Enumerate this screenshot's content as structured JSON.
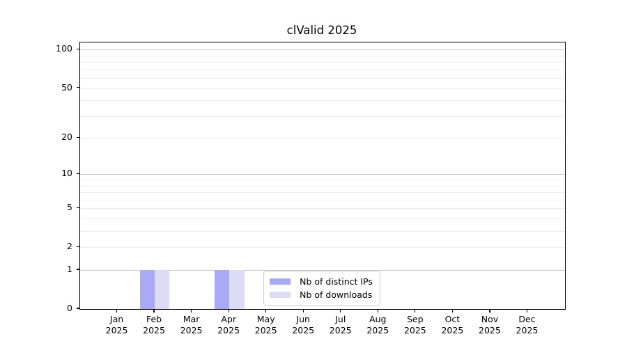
{
  "chart_data": {
    "type": "bar",
    "title": "clValid 2025",
    "xlabel": "",
    "ylabel": "",
    "yscale": "log1p",
    "ylim": [
      0,
      114
    ],
    "grid": "on",
    "legend_position": "lower center",
    "categories": [
      {
        "month": "Jan",
        "year": "2025"
      },
      {
        "month": "Feb",
        "year": "2025"
      },
      {
        "month": "Mar",
        "year": "2025"
      },
      {
        "month": "Apr",
        "year": "2025"
      },
      {
        "month": "May",
        "year": "2025"
      },
      {
        "month": "Jun",
        "year": "2025"
      },
      {
        "month": "Jul",
        "year": "2025"
      },
      {
        "month": "Aug",
        "year": "2025"
      },
      {
        "month": "Sep",
        "year": "2025"
      },
      {
        "month": "Oct",
        "year": "2025"
      },
      {
        "month": "Nov",
        "year": "2025"
      },
      {
        "month": "Dec",
        "year": "2025"
      }
    ],
    "series": [
      {
        "name": "Nb of distinct IPs",
        "color": "#a9a9f4",
        "values": [
          0,
          1,
          0,
          1,
          0,
          0,
          0,
          0,
          0,
          0,
          0,
          0
        ]
      },
      {
        "name": "Nb of downloads",
        "color": "#dcdcf8",
        "values": [
          0,
          1,
          0,
          1,
          0,
          0,
          0,
          0,
          0,
          0,
          0,
          0
        ]
      }
    ],
    "yticks": [
      {
        "value": 0,
        "label": "0"
      },
      {
        "value": 1,
        "label": "1"
      },
      {
        "value": 2,
        "label": "2"
      },
      {
        "value": 5,
        "label": "5"
      },
      {
        "value": 10,
        "label": "10"
      },
      {
        "value": 20,
        "label": "20"
      },
      {
        "value": 50,
        "label": "50"
      },
      {
        "value": 100,
        "label": "100"
      }
    ],
    "major_gridlines": [
      1,
      10,
      100
    ],
    "minor_gridlines": [
      2,
      3,
      4,
      5,
      6,
      7,
      8,
      9,
      20,
      30,
      40,
      50,
      60,
      70,
      80,
      90
    ],
    "colors": {
      "major_grid": "#c9c9c9",
      "minor_grid": "#ededed",
      "spine": "#000000",
      "text": "#000000",
      "background": "#ffffff"
    }
  }
}
